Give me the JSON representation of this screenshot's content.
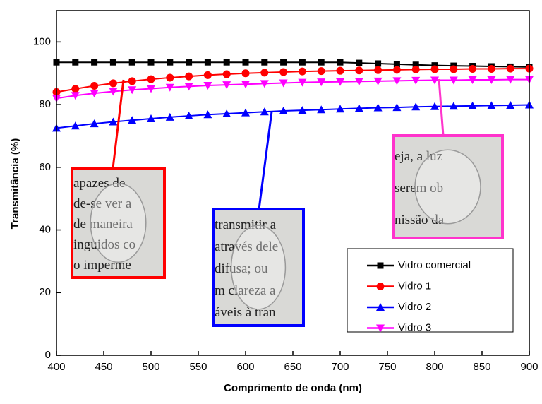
{
  "chart_data": {
    "type": "line",
    "x_label": "Comprimento de onda (nm)",
    "y_label": "Transmitância (%)",
    "x": [
      400,
      420,
      440,
      460,
      480,
      500,
      520,
      540,
      560,
      580,
      600,
      620,
      640,
      660,
      680,
      700,
      720,
      740,
      760,
      780,
      800,
      820,
      840,
      860,
      880,
      900
    ],
    "series": [
      {
        "name": "Vidro comercial",
        "color": "#000000",
        "marker": "square",
        "values": [
          93.5,
          93.5,
          93.5,
          93.5,
          93.5,
          93.5,
          93.5,
          93.5,
          93.5,
          93.5,
          93.5,
          93.5,
          93.5,
          93.5,
          93.5,
          93.5,
          93.3,
          93.1,
          92.9,
          92.7,
          92.5,
          92.4,
          92.3,
          92.2,
          92.1,
          92.0
        ]
      },
      {
        "name": "Vidro 1",
        "color": "#ff0000",
        "marker": "circle",
        "values": [
          84,
          85,
          86,
          86.8,
          87.5,
          88.1,
          88.6,
          89,
          89.4,
          89.7,
          90,
          90.2,
          90.4,
          90.6,
          90.7,
          90.8,
          90.9,
          91,
          91.1,
          91.2,
          91.3,
          91.3,
          91.4,
          91.4,
          91.5,
          91.5
        ]
      },
      {
        "name": "Vidro 2",
        "color": "#0000ff",
        "marker": "triangle-up",
        "values": [
          72.5,
          73.2,
          73.9,
          74.5,
          75,
          75.5,
          76,
          76.4,
          76.8,
          77.1,
          77.4,
          77.7,
          78,
          78.2,
          78.4,
          78.6,
          78.8,
          79,
          79.1,
          79.3,
          79.4,
          79.5,
          79.6,
          79.7,
          79.8,
          79.9
        ]
      },
      {
        "name": "Vidro 3",
        "color": "#ff00ff",
        "marker": "triangle-down",
        "values": [
          82,
          82.9,
          83.6,
          84.2,
          84.7,
          85.1,
          85.5,
          85.8,
          86.1,
          86.3,
          86.5,
          86.7,
          86.9,
          87.1,
          87.2,
          87.3,
          87.4,
          87.5,
          87.6,
          87.7,
          87.8,
          87.8,
          87.9,
          87.9,
          88,
          88
        ]
      }
    ],
    "xlim": [
      400,
      900
    ],
    "xticks": [
      400,
      450,
      500,
      550,
      600,
      650,
      700,
      750,
      800,
      850,
      900
    ],
    "ylim": [
      0,
      110
    ],
    "yticks": [
      0,
      20,
      40,
      60,
      80,
      100
    ],
    "legend": "lower-right",
    "insets": [
      {
        "color": "#ff0000",
        "lines": [
          "apazes de",
          "de-se ver a",
          "de maneira",
          "inguidos co",
          "o imperme"
        ]
      },
      {
        "color": "#0000ff",
        "lines": [
          "transmitir a",
          "através dele",
          "difusa; ou",
          "m clareza a",
          "áveis à tran"
        ]
      },
      {
        "color": "#ff33cc",
        "lines": [
          "eja, a luz",
          "serem ob",
          "nissão da"
        ]
      }
    ]
  }
}
